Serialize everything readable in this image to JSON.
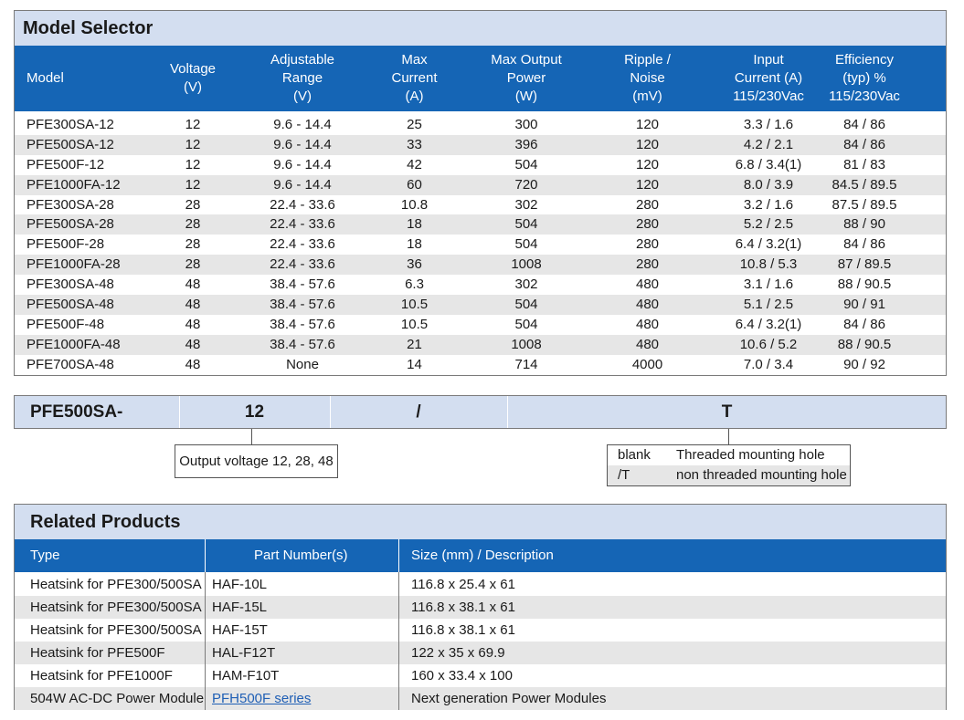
{
  "selector": {
    "title": "Model Selector",
    "headers": [
      "Model",
      "Voltage\n(V)",
      "Adjustable\nRange\n(V)",
      "Max\nCurrent\n(A)",
      "Max Output\nPower\n(W)",
      "Ripple /\nNoise\n(mV)",
      "Input\nCurrent (A)\n115/230Vac",
      "Efficiency\n(typ) %\n115/230Vac"
    ],
    "rows": [
      [
        "PFE300SA-12",
        "12",
        "9.6 - 14.4",
        "25",
        "300",
        "120",
        "3.3 / 1.6",
        "84 / 86"
      ],
      [
        "PFE500SA-12",
        "12",
        "9.6 - 14.4",
        "33",
        "396",
        "120",
        "4.2 / 2.1",
        "84 / 86"
      ],
      [
        "PFE500F-12",
        "12",
        "9.6 - 14.4",
        "42",
        "504",
        "120",
        "6.8 / 3.4(1)",
        "81 / 83"
      ],
      [
        "PFE1000FA-12",
        "12",
        "9.6 - 14.4",
        "60",
        "720",
        "120",
        "8.0 / 3.9",
        "84.5 / 89.5"
      ],
      [
        "PFE300SA-28",
        "28",
        "22.4 - 33.6",
        "10.8",
        "302",
        "280",
        "3.2 / 1.6",
        "87.5 / 89.5"
      ],
      [
        "PFE500SA-28",
        "28",
        "22.4 - 33.6",
        "18",
        "504",
        "280",
        "5.2 / 2.5",
        "88 / 90"
      ],
      [
        "PFE500F-28",
        "28",
        "22.4 - 33.6",
        "18",
        "504",
        "280",
        "6.4 / 3.2(1)",
        "84 / 86"
      ],
      [
        "PFE1000FA-28",
        "28",
        "22.4 - 33.6",
        "36",
        "1008",
        "280",
        "10.8 / 5.3",
        "87 / 89.5"
      ],
      [
        "PFE300SA-48",
        "48",
        "38.4 - 57.6",
        "6.3",
        "302",
        "480",
        "3.1 / 1.6",
        "88 / 90.5"
      ],
      [
        "PFE500SA-48",
        "48",
        "38.4 - 57.6",
        "10.5",
        "504",
        "480",
        "5.1 / 2.5",
        "90 / 91"
      ],
      [
        "PFE500F-48",
        "48",
        "38.4 - 57.6",
        "10.5",
        "504",
        "480",
        "6.4 / 3.2(1)",
        "84 / 86"
      ],
      [
        "PFE1000FA-48",
        "48",
        "38.4 - 57.6",
        "21",
        "1008",
        "480",
        "10.6 / 5.2",
        "88 / 90.5"
      ],
      [
        "PFE700SA-48",
        "48",
        "None",
        "14",
        "714",
        "4000",
        "7.0 / 3.4",
        "90 / 92"
      ]
    ]
  },
  "order_code": {
    "segments": [
      "PFE500SA-",
      "12",
      "/",
      "T"
    ],
    "voltage_callout": "Output voltage 12, 28, 48",
    "mount_options": [
      {
        "key": "blank",
        "value": "Threaded mounting hole"
      },
      {
        "key": "/T",
        "value": "non threaded mounting hole"
      }
    ]
  },
  "related": {
    "title": "Related Products",
    "headers": [
      "Type",
      "Part Number(s)",
      "Size (mm) / Description"
    ],
    "rows": [
      [
        "Heatsink for PFE300/500SA",
        "HAF-10L",
        "116.8 x 25.4 x 61"
      ],
      [
        "Heatsink for PFE300/500SA",
        "HAF-15L",
        "116.8 x 38.1 x 61"
      ],
      [
        "Heatsink for PFE300/500SA",
        "HAF-15T",
        "116.8 x 38.1 x 61"
      ],
      [
        "Heatsink for PFE500F",
        "HAL-F12T",
        "122 x 35 x 69.9"
      ],
      [
        "Heatsink for PFE1000F",
        "HAM-F10T",
        "160 x 33.4 x 100"
      ],
      [
        "504W AC-DC Power Module",
        "PFH500F series",
        "Next generation Power Modules"
      ]
    ],
    "link_cell": {
      "row": 5,
      "col": 1
    }
  }
}
